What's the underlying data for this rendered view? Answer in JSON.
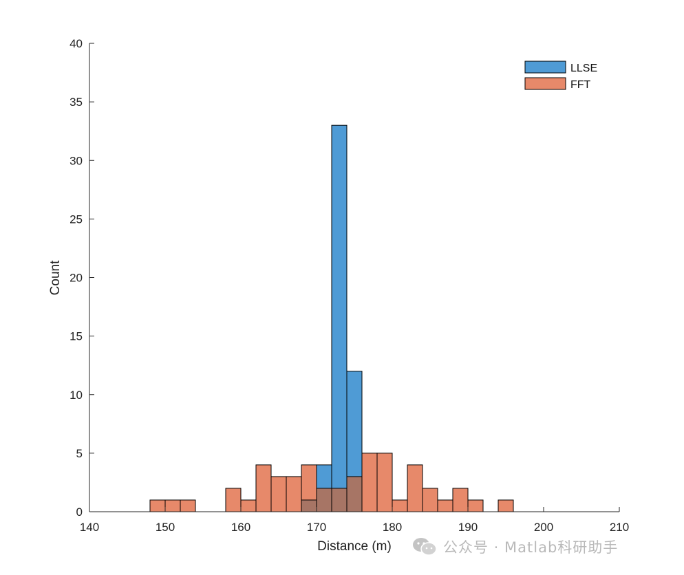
{
  "chart_data": {
    "type": "histogram",
    "xlabel": "Distance (m)",
    "ylabel": "Count",
    "xlim": [
      140,
      210
    ],
    "ylim": [
      0,
      40
    ],
    "xticks": [
      140,
      150,
      160,
      170,
      180,
      190,
      200,
      210
    ],
    "yticks": [
      0,
      5,
      10,
      15,
      20,
      25,
      30,
      35,
      40
    ],
    "bin_width": 2,
    "grid": false,
    "legend_position": "top-right",
    "series": [
      {
        "name": "LLSE",
        "color": "#4f9bd5",
        "bins": [
          {
            "x0": 168,
            "x1": 170,
            "count": 1
          },
          {
            "x0": 170,
            "x1": 172,
            "count": 4
          },
          {
            "x0": 172,
            "x1": 174,
            "count": 33
          },
          {
            "x0": 174,
            "x1": 176,
            "count": 12
          }
        ]
      },
      {
        "name": "FFT",
        "color": "#e7896a",
        "bins": [
          {
            "x0": 148,
            "x1": 150,
            "count": 1
          },
          {
            "x0": 150,
            "x1": 152,
            "count": 1
          },
          {
            "x0": 152,
            "x1": 154,
            "count": 1
          },
          {
            "x0": 158,
            "x1": 160,
            "count": 2
          },
          {
            "x0": 160,
            "x1": 162,
            "count": 1
          },
          {
            "x0": 162,
            "x1": 164,
            "count": 4
          },
          {
            "x0": 164,
            "x1": 166,
            "count": 3
          },
          {
            "x0": 166,
            "x1": 168,
            "count": 3
          },
          {
            "x0": 168,
            "x1": 170,
            "count": 4
          },
          {
            "x0": 170,
            "x1": 172,
            "count": 2
          },
          {
            "x0": 172,
            "x1": 174,
            "count": 2
          },
          {
            "x0": 174,
            "x1": 176,
            "count": 3
          },
          {
            "x0": 176,
            "x1": 178,
            "count": 5
          },
          {
            "x0": 178,
            "x1": 180,
            "count": 5
          },
          {
            "x0": 180,
            "x1": 182,
            "count": 1
          },
          {
            "x0": 182,
            "x1": 184,
            "count": 4
          },
          {
            "x0": 184,
            "x1": 186,
            "count": 2
          },
          {
            "x0": 186,
            "x1": 188,
            "count": 1
          },
          {
            "x0": 188,
            "x1": 190,
            "count": 2
          },
          {
            "x0": 190,
            "x1": 192,
            "count": 1
          },
          {
            "x0": 194,
            "x1": 196,
            "count": 1
          }
        ]
      }
    ],
    "overlap_color": "#a77565"
  },
  "watermark": {
    "text": "公众号 · Matlab科研助手",
    "icon": "wechat-icon"
  }
}
